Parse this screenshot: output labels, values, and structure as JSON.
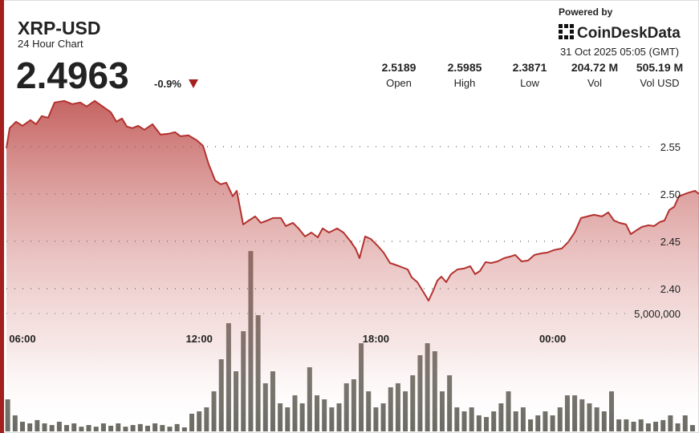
{
  "header": {
    "powered_by": "Powered by",
    "brand": "CoinDeskData",
    "timestamp": "31 Oct 2025 05:05 (GMT)"
  },
  "chart_data": {
    "type": "line",
    "title": "XRP-USD",
    "subtitle": "24 Hour Chart",
    "price": 2.4963,
    "change": "-0.9%",
    "stats": [
      {
        "value": 2.5189,
        "label": "Open"
      },
      {
        "value": 2.5985,
        "label": "High"
      },
      {
        "value": 2.3871,
        "label": "Low"
      },
      {
        "value": "204.72 M",
        "label": "Vol"
      },
      {
        "value": "505.19 M",
        "label": "Vol USD"
      }
    ],
    "color": "#b3322f",
    "x": [
      5.455,
      5.564,
      5.782,
      6.0,
      6.272,
      6.463,
      6.654,
      6.872,
      7.09,
      7.417,
      7.689,
      7.962,
      8.18,
      8.452,
      8.725,
      8.997,
      9.188,
      9.379,
      9.542,
      9.733,
      9.924,
      10.142,
      10.414,
      10.687,
      10.959,
      11.177,
      11.368,
      11.64,
      11.913,
      12.131,
      12.322,
      12.54,
      12.73,
      12.921,
      13.139,
      13.275,
      13.493,
      13.684,
      13.902,
      14.093,
      14.311,
      14.501,
      14.774,
      14.937,
      15.183,
      15.373,
      15.591,
      15.809,
      16.027,
      16.191,
      16.409,
      16.681,
      16.899,
      17.117,
      17.308,
      17.444,
      17.635,
      17.826,
      18.044,
      18.262,
      18.48,
      18.643,
      18.861,
      19.079,
      19.215,
      19.406,
      19.624,
      19.787,
      19.951,
      20.087,
      20.223,
      20.387,
      20.55,
      20.768,
      20.986,
      21.204,
      21.368,
      21.531,
      21.722,
      21.913,
      22.131,
      22.349,
      22.567,
      22.73,
      22.948,
      23.166,
      23.384,
      23.629,
      23.82,
      24.038,
      24.311,
      24.529,
      24.747,
      24.965,
      25.183,
      25.401,
      25.673,
      25.891,
      26.082,
      26.272,
      26.49,
      26.654,
      26.817,
      27.035,
      27.253,
      27.444,
      27.635,
      27.798,
      27.962,
      28.125,
      28.289,
      28.561,
      28.834,
      28.97
    ],
    "values": [
      2.5483,
      2.5695,
      2.5763,
      2.572,
      2.578,
      2.5737,
      2.5822,
      2.5805,
      2.5966,
      2.5983,
      2.5949,
      2.5966,
      2.5924,
      2.5983,
      2.5924,
      2.5864,
      2.5763,
      2.5797,
      2.5712,
      2.5695,
      2.572,
      2.5678,
      2.5737,
      2.5627,
      2.5636,
      2.5653,
      2.561,
      2.5619,
      2.5568,
      2.5508,
      2.5314,
      2.5144,
      2.5102,
      2.5119,
      2.4975,
      2.5034,
      2.4678,
      2.472,
      2.4763,
      2.4695,
      2.472,
      2.4746,
      2.4746,
      2.4661,
      2.4695,
      2.4636,
      2.4551,
      2.4593,
      2.4542,
      2.4636,
      2.4593,
      2.4636,
      2.4593,
      2.4508,
      2.4424,
      2.4322,
      2.4551,
      2.4525,
      2.4458,
      2.4381,
      2.4271,
      2.4254,
      2.4229,
      2.4203,
      2.4119,
      2.4068,
      2.3958,
      2.3873,
      2.3983,
      2.4085,
      2.4127,
      2.4068,
      2.4153,
      2.4203,
      2.4212,
      2.4237,
      2.4153,
      2.4186,
      2.428,
      2.4271,
      2.4288,
      2.4322,
      2.4339,
      2.4356,
      2.4288,
      2.4297,
      2.4356,
      2.4373,
      2.4381,
      2.4407,
      2.4424,
      2.4492,
      2.4593,
      2.4746,
      2.4763,
      2.478,
      2.4763,
      2.4805,
      2.472,
      2.4695,
      2.4678,
      2.4576,
      2.461,
      2.4653,
      2.4669,
      2.4661,
      2.4703,
      2.472,
      2.4831,
      2.4864,
      2.4975,
      2.5008,
      2.5034,
      2.5
    ],
    "xlim": [
      5.455,
      28.97
    ],
    "xticks": [
      {
        "value": 6,
        "label": "06:00"
      },
      {
        "value": 12,
        "label": "12:00"
      },
      {
        "value": 18,
        "label": "18:00"
      },
      {
        "value": 24,
        "label": "00:00"
      }
    ],
    "ylim": [
      2.37,
      2.61
    ],
    "yticks": [
      {
        "value": 2.4,
        "label": "2.40"
      },
      2.45,
      {
        "value": 2.5,
        "label": "2.50"
      },
      2.55
    ],
    "grid": true,
    "volume": {
      "type": "bar",
      "color": "#6b6b63",
      "x": [
        5.5,
        5.75,
        6.0,
        6.25,
        6.5,
        6.75,
        7.0,
        7.25,
        7.5,
        7.75,
        8.0,
        8.25,
        8.5,
        8.75,
        9.0,
        9.25,
        9.5,
        9.75,
        10.0,
        10.25,
        10.5,
        10.75,
        11.0,
        11.25,
        11.5,
        11.75,
        12.0,
        12.25,
        12.5,
        12.75,
        13.0,
        13.25,
        13.5,
        13.75,
        14.0,
        14.25,
        14.5,
        14.75,
        15.0,
        15.25,
        15.5,
        15.75,
        16.0,
        16.25,
        16.5,
        16.75,
        17.0,
        17.25,
        17.5,
        17.75,
        18.0,
        18.25,
        18.5,
        18.75,
        19.0,
        19.25,
        19.5,
        19.75,
        20.0,
        20.25,
        20.5,
        20.75,
        21.0,
        21.25,
        21.5,
        21.75,
        22.0,
        22.25,
        22.5,
        22.75,
        23.0,
        23.25,
        23.5,
        23.75,
        24.0,
        24.25,
        24.5,
        24.75,
        25.0,
        25.25,
        25.5,
        25.75,
        26.0,
        26.25,
        26.5,
        26.75,
        27.0,
        27.25,
        27.5,
        27.75,
        28.0,
        28.25,
        28.5,
        28.75
      ],
      "values": [
        1360000,
        680000,
        410000,
        340000,
        480000,
        340000,
        270000,
        410000,
        270000,
        340000,
        200000,
        270000,
        200000,
        340000,
        240000,
        340000,
        200000,
        270000,
        310000,
        240000,
        340000,
        270000,
        200000,
        310000,
        170000,
        750000,
        850000,
        1020000,
        1700000,
        3060000,
        4590000,
        2550000,
        4250000,
        7650000,
        4930000,
        2040000,
        2550000,
        1190000,
        1020000,
        1530000,
        1190000,
        2720000,
        1530000,
        1360000,
        1020000,
        1190000,
        2040000,
        2210000,
        3740000,
        1700000,
        1020000,
        1190000,
        1870000,
        2040000,
        1700000,
        2380000,
        3230000,
        3740000,
        3400000,
        1700000,
        2380000,
        1020000,
        850000,
        1020000,
        680000,
        610000,
        850000,
        1190000,
        1700000,
        850000,
        1020000,
        510000,
        680000,
        850000,
        680000,
        1020000,
        1530000,
        1530000,
        1360000,
        1190000,
        1020000,
        850000,
        1700000,
        510000,
        510000,
        410000,
        510000,
        340000,
        410000,
        480000,
        680000,
        340000,
        680000,
        270000
      ],
      "ylim": [
        0,
        8000000
      ],
      "yticks": [
        {
          "value": 5000000,
          "label": "5,000,000"
        }
      ]
    }
  }
}
